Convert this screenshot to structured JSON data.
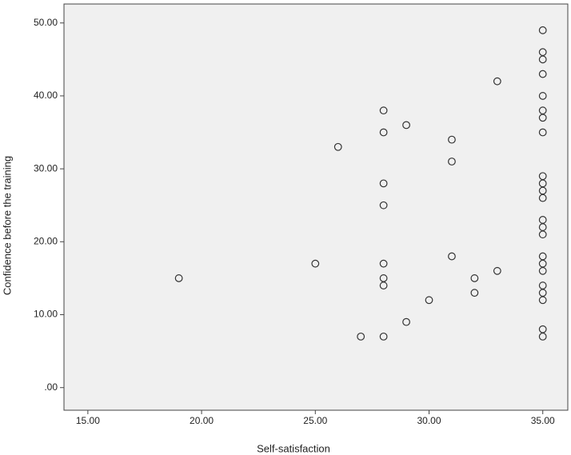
{
  "chart_data": {
    "type": "scatter",
    "x_label": "Self-satisfaction",
    "y_label": "Confidence before the training",
    "x": [
      19,
      25,
      26,
      27,
      28,
      28,
      28,
      28,
      28,
      28,
      28,
      28,
      29,
      29,
      30,
      31,
      31,
      31,
      32,
      32,
      33,
      33,
      35,
      35,
      35,
      35,
      35,
      35,
      35,
      35,
      35,
      35,
      35,
      35,
      35,
      35,
      35,
      35,
      35,
      35,
      35,
      35,
      35,
      35,
      35
    ],
    "values": [
      15,
      17,
      33,
      7,
      38,
      35,
      28,
      25,
      17,
      15,
      14,
      7,
      36,
      9,
      12,
      34,
      31,
      18,
      15,
      13,
      42,
      16,
      49,
      46,
      45,
      43,
      40,
      38,
      37,
      35,
      29,
      28,
      27,
      26,
      23,
      22,
      21,
      18,
      17,
      16,
      14,
      13,
      12,
      8,
      7
    ],
    "color": "#333333",
    "xlim": [
      13.95,
      36.1
    ],
    "ylim": [
      -3.1,
      52.6
    ],
    "xticks": [
      {
        "value": 15,
        "label": "15.00"
      },
      {
        "value": 20,
        "label": "20.00"
      },
      {
        "value": 25,
        "label": "25.00"
      },
      {
        "value": 30,
        "label": "30.00"
      },
      {
        "value": 35,
        "label": "35.00"
      }
    ],
    "yticks": [
      {
        "value": 0,
        "label": ".00"
      },
      {
        "value": 10,
        "label": "10.00"
      },
      {
        "value": 20,
        "label": "20.00"
      },
      {
        "value": 30,
        "label": "30.00"
      },
      {
        "value": 40,
        "label": "40.00"
      },
      {
        "value": 50,
        "label": "50.00"
      }
    ],
    "grid": false
  }
}
